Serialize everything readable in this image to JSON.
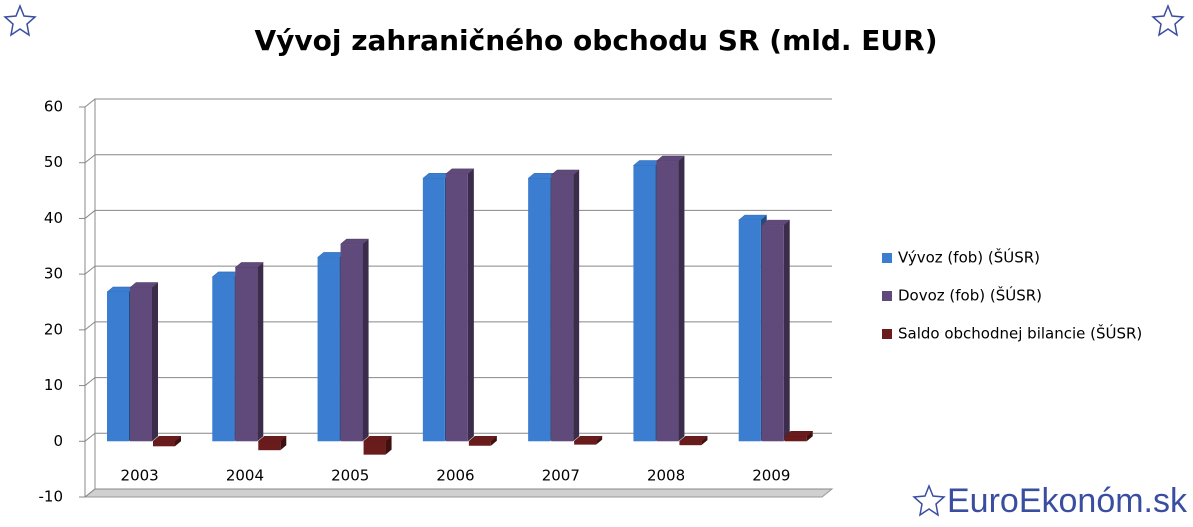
{
  "chart_data": {
    "type": "bar3d",
    "title": "Vývoj zahraničného obchodu SR (mld. EUR)",
    "categories": [
      "2003",
      "2004",
      "2005",
      "2006",
      "2007",
      "2008",
      "2009"
    ],
    "series": [
      {
        "name": "Vývoz (fob) (ŠÚSR)",
        "color": "#3b7dd0",
        "values": [
          26.8,
          29.5,
          33.0,
          47.2,
          47.2,
          49.5,
          39.7
        ]
      },
      {
        "name": "Dovoz (fob)  (ŠÚSR)",
        "color": "#604a7b",
        "values": [
          27.6,
          31.2,
          35.4,
          48.0,
          47.8,
          50.3,
          38.8
        ]
      },
      {
        "name": "Saldo obchodnej bilancie (ŠÚSR)",
        "color": "#6a1b1b",
        "values": [
          -0.9,
          -1.6,
          -2.4,
          -0.8,
          -0.6,
          -0.7,
          0.9
        ]
      }
    ],
    "ylim": [
      -10,
      60
    ],
    "yticks": [
      -10,
      0,
      10,
      20,
      30,
      40,
      50,
      60
    ],
    "grid": true,
    "legend": "right",
    "brand": "EuroEkonóm.sk"
  }
}
